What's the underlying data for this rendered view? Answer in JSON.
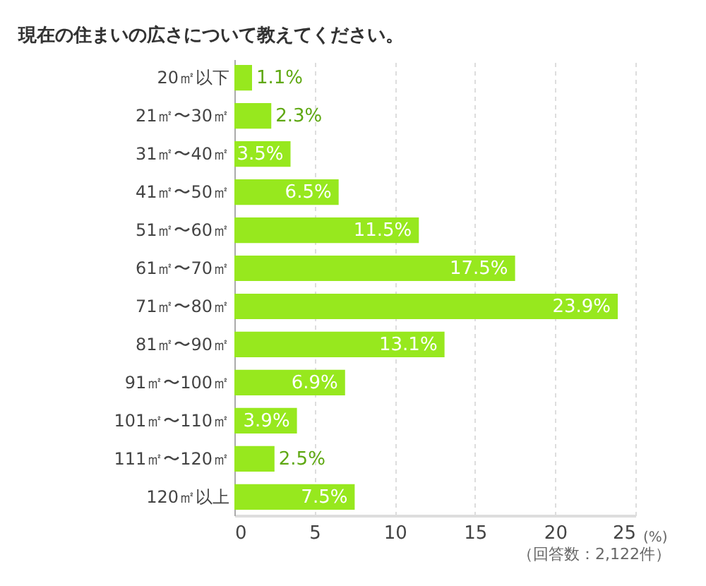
{
  "chart_data": {
    "type": "bar",
    "orientation": "horizontal",
    "title": "現在の住まいの広さについて教えてください。",
    "categories": [
      "20㎡以下",
      "21㎡〜30㎡",
      "31㎡〜40㎡",
      "41㎡〜50㎡",
      "51㎡〜60㎡",
      "61㎡〜70㎡",
      "71㎡〜80㎡",
      "81㎡〜90㎡",
      "91㎡〜100㎡",
      "101㎡〜110㎡",
      "111㎡〜120㎡",
      "120㎡以上"
    ],
    "values": [
      1.1,
      2.3,
      3.5,
      6.5,
      11.5,
      17.5,
      23.9,
      13.1,
      6.9,
      3.9,
      2.5,
      7.5
    ],
    "value_labels": [
      "1.1%",
      "2.3%",
      "3.5%",
      "6.5%",
      "11.5%",
      "17.5%",
      "23.9%",
      "13.1%",
      "6.9%",
      "3.9%",
      "2.5%",
      "7.5%"
    ],
    "color": "#97e81e",
    "xlim": [
      0,
      25
    ],
    "xticks": [
      0,
      5,
      10,
      15,
      20,
      25
    ],
    "xlabel": "(%)",
    "grid": "x",
    "annotations": [
      "（回答数：2,122件）"
    ]
  }
}
